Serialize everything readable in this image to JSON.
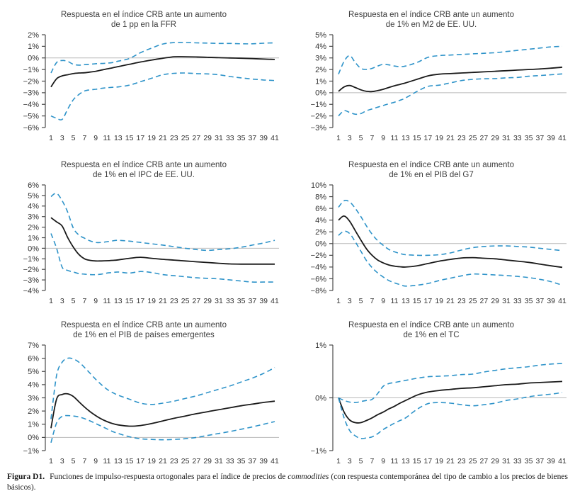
{
  "figure": {
    "caption_label": "Figura D1.",
    "caption_text_a": "Funciones de impulso-respuesta ortogonales para el índice de precios de ",
    "caption_italic": "commodities",
    "caption_text_b": " (con respuesta contemporánea del tipo de cambio a los precios de bienes básicos)."
  },
  "colors": {
    "band": "#2e93c9",
    "center": "#1a1a1a",
    "zero_line": "#b9b9b9",
    "axis": "#4a4a4a",
    "text": "#333333"
  },
  "chart_data": [
    {
      "type": "line",
      "title_line1": "Respuesta en el índice CRB ante un aumento",
      "title_line2": "de 1 pp en la FFR",
      "xlabel": "",
      "ylabel": "",
      "grid": "zero-line-only",
      "legend": "none",
      "ylim": [
        -6,
        2
      ],
      "x": [
        1,
        2,
        3,
        4,
        5,
        6,
        7,
        8,
        9,
        10,
        11,
        12,
        13,
        15,
        17,
        19,
        21,
        23,
        25,
        27,
        29,
        31,
        33,
        35,
        37,
        39,
        41
      ],
      "xticks": [
        1,
        3,
        5,
        7,
        9,
        11,
        13,
        15,
        17,
        19,
        21,
        23,
        25,
        27,
        29,
        31,
        33,
        35,
        37,
        39,
        41
      ],
      "yticks": {
        "values": [
          2,
          1,
          0,
          -1,
          -2,
          -3,
          -4,
          -5,
          -6
        ],
        "labels": [
          "2%",
          "1%",
          "0%",
          "−1%",
          "−2%",
          "−3%",
          "−4%",
          "−5%",
          "−6%"
        ]
      },
      "series": [
        {
          "name": "banda superior",
          "style": "dashed",
          "values": [
            -1.3,
            -0.4,
            -0.22,
            -0.3,
            -0.55,
            -0.62,
            -0.58,
            -0.55,
            -0.5,
            -0.48,
            -0.45,
            -0.4,
            -0.28,
            -0.05,
            0.45,
            0.85,
            1.2,
            1.32,
            1.33,
            1.3,
            1.28,
            1.25,
            1.25,
            1.22,
            1.22,
            1.27,
            1.3
          ]
        },
        {
          "name": "respuesta",
          "style": "solid",
          "values": [
            -2.5,
            -1.8,
            -1.55,
            -1.45,
            -1.35,
            -1.3,
            -1.28,
            -1.22,
            -1.15,
            -1.05,
            -0.95,
            -0.85,
            -0.75,
            -0.55,
            -0.35,
            -0.18,
            -0.03,
            0.1,
            0.1,
            0.08,
            0.05,
            0.02,
            0,
            -0.03,
            -0.06,
            -0.1,
            -0.13
          ]
        },
        {
          "name": "banda inferior",
          "style": "dashed",
          "values": [
            -5,
            -5.2,
            -5.3,
            -4.4,
            -3.6,
            -3.15,
            -2.85,
            -2.75,
            -2.7,
            -2.62,
            -2.57,
            -2.53,
            -2.5,
            -2.35,
            -2.05,
            -1.75,
            -1.45,
            -1.33,
            -1.3,
            -1.35,
            -1.38,
            -1.45,
            -1.6,
            -1.72,
            -1.82,
            -1.9,
            -1.95
          ]
        }
      ]
    },
    {
      "type": "line",
      "title_line1": "Respuesta en el índice CRB ante un aumento",
      "title_line2": "de 1% en M2 de EE. UU.",
      "xlabel": "",
      "ylabel": "",
      "grid": "zero-line-only",
      "legend": "none",
      "ylim": [
        -3,
        5
      ],
      "x": [
        1,
        2,
        3,
        4,
        5,
        6,
        7,
        8,
        9,
        10,
        11,
        12,
        13,
        15,
        17,
        19,
        21,
        23,
        25,
        27,
        29,
        31,
        33,
        35,
        37,
        39,
        41
      ],
      "xticks": [
        1,
        3,
        5,
        7,
        9,
        11,
        13,
        15,
        17,
        19,
        21,
        23,
        25,
        27,
        29,
        31,
        33,
        35,
        37,
        39,
        41
      ],
      "yticks": {
        "values": [
          5,
          4,
          3,
          2,
          1,
          0,
          -1,
          -2,
          -3
        ],
        "labels": [
          "5%",
          "4%",
          "3%",
          "2%",
          "1%",
          "0%",
          "−1%",
          "−2%",
          "−3%"
        ]
      },
      "series": [
        {
          "name": "banda superior",
          "style": "dashed",
          "values": [
            1.6,
            2.7,
            3.2,
            2.6,
            2.1,
            2.0,
            2.1,
            2.3,
            2.45,
            2.4,
            2.3,
            2.25,
            2.3,
            2.6,
            3.05,
            3.2,
            3.25,
            3.3,
            3.35,
            3.4,
            3.45,
            3.55,
            3.65,
            3.75,
            3.85,
            3.95,
            4.0
          ]
        },
        {
          "name": "respuesta",
          "style": "solid",
          "values": [
            0.12,
            0.5,
            0.62,
            0.45,
            0.25,
            0.12,
            0.1,
            0.18,
            0.3,
            0.45,
            0.6,
            0.72,
            0.85,
            1.15,
            1.45,
            1.6,
            1.65,
            1.7,
            1.75,
            1.8,
            1.85,
            1.9,
            1.95,
            2.0,
            2.05,
            2.12,
            2.2
          ]
        },
        {
          "name": "banda inferior",
          "style": "dashed",
          "values": [
            -2.0,
            -1.55,
            -1.7,
            -1.85,
            -1.8,
            -1.55,
            -1.4,
            -1.25,
            -1.1,
            -0.95,
            -0.82,
            -0.65,
            -0.45,
            0.1,
            0.55,
            0.65,
            0.85,
            1.05,
            1.15,
            1.2,
            1.22,
            1.28,
            1.32,
            1.42,
            1.48,
            1.55,
            1.62
          ]
        }
      ]
    },
    {
      "type": "line",
      "title_line1": "Respuesta en el índice CRB ante un aumento",
      "title_line2": "de 1% en el IPC de EE. UU.",
      "xlabel": "",
      "ylabel": "",
      "grid": "zero-line-only",
      "legend": "none",
      "ylim": [
        -4,
        6
      ],
      "x": [
        1,
        2,
        3,
        4,
        5,
        6,
        7,
        8,
        9,
        10,
        11,
        12,
        13,
        15,
        17,
        19,
        21,
        23,
        25,
        27,
        29,
        31,
        33,
        35,
        37,
        39,
        41
      ],
      "xticks": [
        1,
        3,
        5,
        7,
        9,
        11,
        13,
        15,
        17,
        19,
        21,
        23,
        25,
        27,
        29,
        31,
        33,
        35,
        37,
        39,
        41
      ],
      "yticks": {
        "values": [
          6,
          5,
          4,
          3,
          2,
          1,
          0,
          -1,
          -2,
          -3,
          -4
        ],
        "labels": [
          "6%",
          "5%",
          "4%",
          "3%",
          "2%",
          "1%",
          "0%",
          "−1%",
          "−2%",
          "−3%",
          "−4%"
        ]
      },
      "series": [
        {
          "name": "banda superior",
          "style": "dashed",
          "values": [
            4.9,
            5.2,
            4.5,
            3.4,
            1.9,
            1.25,
            0.95,
            0.7,
            0.55,
            0.55,
            0.62,
            0.7,
            0.75,
            0.68,
            0.55,
            0.42,
            0.3,
            0.15,
            0.0,
            -0.12,
            -0.2,
            -0.12,
            -0.05,
            0.1,
            0.3,
            0.5,
            0.75
          ]
        },
        {
          "name": "respuesta",
          "style": "solid",
          "values": [
            2.9,
            2.5,
            2.1,
            1.0,
            0.1,
            -0.6,
            -1.0,
            -1.15,
            -1.2,
            -1.2,
            -1.18,
            -1.15,
            -1.1,
            -0.95,
            -0.85,
            -0.95,
            -1.05,
            -1.12,
            -1.2,
            -1.28,
            -1.35,
            -1.42,
            -1.48,
            -1.5,
            -1.5,
            -1.5,
            -1.5
          ]
        },
        {
          "name": "banda inferior",
          "style": "dashed",
          "values": [
            1.4,
            0.0,
            -1.8,
            -2.1,
            -2.25,
            -2.4,
            -2.45,
            -2.5,
            -2.5,
            -2.45,
            -2.35,
            -2.3,
            -2.25,
            -2.35,
            -2.2,
            -2.3,
            -2.5,
            -2.6,
            -2.7,
            -2.8,
            -2.85,
            -2.9,
            -3.0,
            -3.1,
            -3.2,
            -3.2,
            -3.2
          ]
        }
      ]
    },
    {
      "type": "line",
      "title_line1": "Respuesta en el índice CRB ante un aumento",
      "title_line2": "de 1% en el PIB del G7",
      "xlabel": "",
      "ylabel": "",
      "grid": "zero-line-only",
      "legend": "none",
      "ylim": [
        -8,
        10
      ],
      "x": [
        1,
        2,
        3,
        4,
        5,
        6,
        7,
        8,
        9,
        10,
        11,
        12,
        13,
        15,
        17,
        19,
        21,
        23,
        25,
        27,
        29,
        31,
        33,
        35,
        37,
        39,
        41
      ],
      "xticks": [
        1,
        3,
        5,
        7,
        9,
        11,
        13,
        15,
        17,
        19,
        21,
        23,
        25,
        27,
        29,
        31,
        33,
        35,
        37,
        39,
        41
      ],
      "yticks": {
        "values": [
          10,
          8,
          6,
          4,
          2,
          0,
          -2,
          -4,
          -6,
          -8
        ],
        "labels": [
          "10%",
          "8%",
          "6%",
          "4%",
          "2%",
          "0%",
          "−2%",
          "−4%",
          "−6%",
          "−8%"
        ]
      },
      "series": [
        {
          "name": "banda superior",
          "style": "dashed",
          "values": [
            6.2,
            7.3,
            7.1,
            6.0,
            4.6,
            3.0,
            1.6,
            0.5,
            -0.3,
            -1.0,
            -1.4,
            -1.7,
            -1.9,
            -2.0,
            -2.0,
            -1.9,
            -1.6,
            -1.1,
            -0.7,
            -0.5,
            -0.4,
            -0.4,
            -0.5,
            -0.6,
            -0.8,
            -1.0,
            -1.2
          ]
        },
        {
          "name": "respuesta",
          "style": "solid",
          "values": [
            4.0,
            4.7,
            3.8,
            2.2,
            0.6,
            -0.9,
            -2.0,
            -2.8,
            -3.3,
            -3.65,
            -3.85,
            -3.95,
            -4.0,
            -3.8,
            -3.4,
            -3.0,
            -2.7,
            -2.45,
            -2.4,
            -2.5,
            -2.6,
            -2.8,
            -3.0,
            -3.2,
            -3.5,
            -3.8,
            -4.05
          ]
        },
        {
          "name": "banda inferior",
          "style": "dashed",
          "values": [
            1.4,
            2.1,
            1.7,
            0.3,
            -1.3,
            -2.9,
            -4.1,
            -5.0,
            -5.7,
            -6.3,
            -6.7,
            -7.0,
            -7.25,
            -7.1,
            -6.8,
            -6.3,
            -5.9,
            -5.5,
            -5.2,
            -5.25,
            -5.35,
            -5.45,
            -5.6,
            -5.8,
            -6.1,
            -6.5,
            -7.1
          ]
        }
      ]
    },
    {
      "type": "line",
      "title_line1": "Respuesta en el índice CRB ante un aumento",
      "title_line2": "de 1% en el PIB de países emergentes",
      "xlabel": "",
      "ylabel": "",
      "grid": "zero-line-only",
      "legend": "none",
      "ylim": [
        -1,
        7
      ],
      "x": [
        1,
        2,
        3,
        4,
        5,
        6,
        7,
        8,
        9,
        10,
        11,
        12,
        13,
        15,
        17,
        19,
        21,
        23,
        25,
        27,
        29,
        31,
        33,
        35,
        37,
        39,
        41
      ],
      "xticks": [
        1,
        3,
        5,
        7,
        9,
        11,
        13,
        15,
        17,
        19,
        21,
        23,
        25,
        27,
        29,
        31,
        33,
        35,
        37,
        39,
        41
      ],
      "yticks": {
        "values": [
          7,
          6,
          5,
          4,
          3,
          2,
          1,
          0,
          -1
        ],
        "labels": [
          "7%",
          "6%",
          "5%",
          "4%",
          "3%",
          "2%",
          "1%",
          "0%",
          "−1%"
        ]
      },
      "series": [
        {
          "name": "banda superior",
          "style": "dashed",
          "values": [
            1.4,
            4.7,
            5.7,
            6.0,
            5.95,
            5.7,
            5.3,
            4.85,
            4.4,
            4.0,
            3.65,
            3.4,
            3.2,
            2.9,
            2.6,
            2.5,
            2.6,
            2.75,
            2.95,
            3.15,
            3.4,
            3.65,
            3.9,
            4.2,
            4.5,
            4.85,
            5.3
          ]
        },
        {
          "name": "respuesta",
          "style": "solid",
          "values": [
            0.7,
            2.9,
            3.25,
            3.3,
            3.1,
            2.7,
            2.3,
            1.95,
            1.65,
            1.4,
            1.2,
            1.05,
            0.95,
            0.85,
            0.9,
            1.05,
            1.25,
            1.45,
            1.62,
            1.8,
            1.95,
            2.1,
            2.25,
            2.4,
            2.52,
            2.65,
            2.75
          ]
        },
        {
          "name": "banda inferior",
          "style": "dashed",
          "values": [
            -0.4,
            1.1,
            1.6,
            1.65,
            1.62,
            1.55,
            1.42,
            1.25,
            1.05,
            0.85,
            0.65,
            0.45,
            0.3,
            0.05,
            -0.1,
            -0.15,
            -0.18,
            -0.15,
            -0.1,
            0.0,
            0.15,
            0.3,
            0.45,
            0.62,
            0.8,
            1.0,
            1.2
          ]
        }
      ]
    },
    {
      "type": "line",
      "title_line1": "Respuesta en el índice CRB ante un aumento",
      "title_line2": "de 1% en el TC",
      "xlabel": "",
      "ylabel": "",
      "grid": "zero-line-only",
      "legend": "none",
      "ylim": [
        -1,
        1
      ],
      "x": [
        1,
        2,
        3,
        4,
        5,
        6,
        7,
        8,
        9,
        10,
        11,
        12,
        13,
        15,
        17,
        19,
        21,
        23,
        25,
        27,
        29,
        31,
        33,
        35,
        37,
        39,
        41
      ],
      "xticks": [
        1,
        3,
        5,
        7,
        9,
        11,
        13,
        15,
        17,
        19,
        21,
        23,
        25,
        27,
        29,
        31,
        33,
        35,
        37,
        39,
        41
      ],
      "yticks": {
        "values": [
          1,
          0,
          -1
        ],
        "labels": [
          "1%",
          "0%",
          "−1%"
        ]
      },
      "series": [
        {
          "name": "banda superior",
          "style": "dashed",
          "values": [
            0.0,
            -0.05,
            -0.08,
            -0.09,
            -0.07,
            -0.05,
            -0.03,
            0.08,
            0.22,
            0.27,
            0.29,
            0.31,
            0.33,
            0.37,
            0.4,
            0.41,
            0.42,
            0.44,
            0.45,
            0.49,
            0.52,
            0.55,
            0.57,
            0.59,
            0.62,
            0.64,
            0.65
          ]
        },
        {
          "name": "respuesta",
          "style": "solid",
          "values": [
            0.0,
            -0.27,
            -0.42,
            -0.47,
            -0.47,
            -0.43,
            -0.38,
            -0.32,
            -0.27,
            -0.21,
            -0.16,
            -0.1,
            -0.05,
            0.05,
            0.11,
            0.14,
            0.16,
            0.18,
            0.19,
            0.21,
            0.23,
            0.25,
            0.26,
            0.28,
            0.29,
            0.3,
            0.31
          ]
        },
        {
          "name": "banda inferior",
          "style": "dashed",
          "values": [
            0.0,
            -0.38,
            -0.62,
            -0.72,
            -0.77,
            -0.76,
            -0.74,
            -0.68,
            -0.6,
            -0.54,
            -0.48,
            -0.43,
            -0.38,
            -0.22,
            -0.11,
            -0.09,
            -0.1,
            -0.13,
            -0.15,
            -0.13,
            -0.1,
            -0.05,
            -0.02,
            0.02,
            0.05,
            0.07,
            0.1
          ]
        }
      ]
    }
  ]
}
